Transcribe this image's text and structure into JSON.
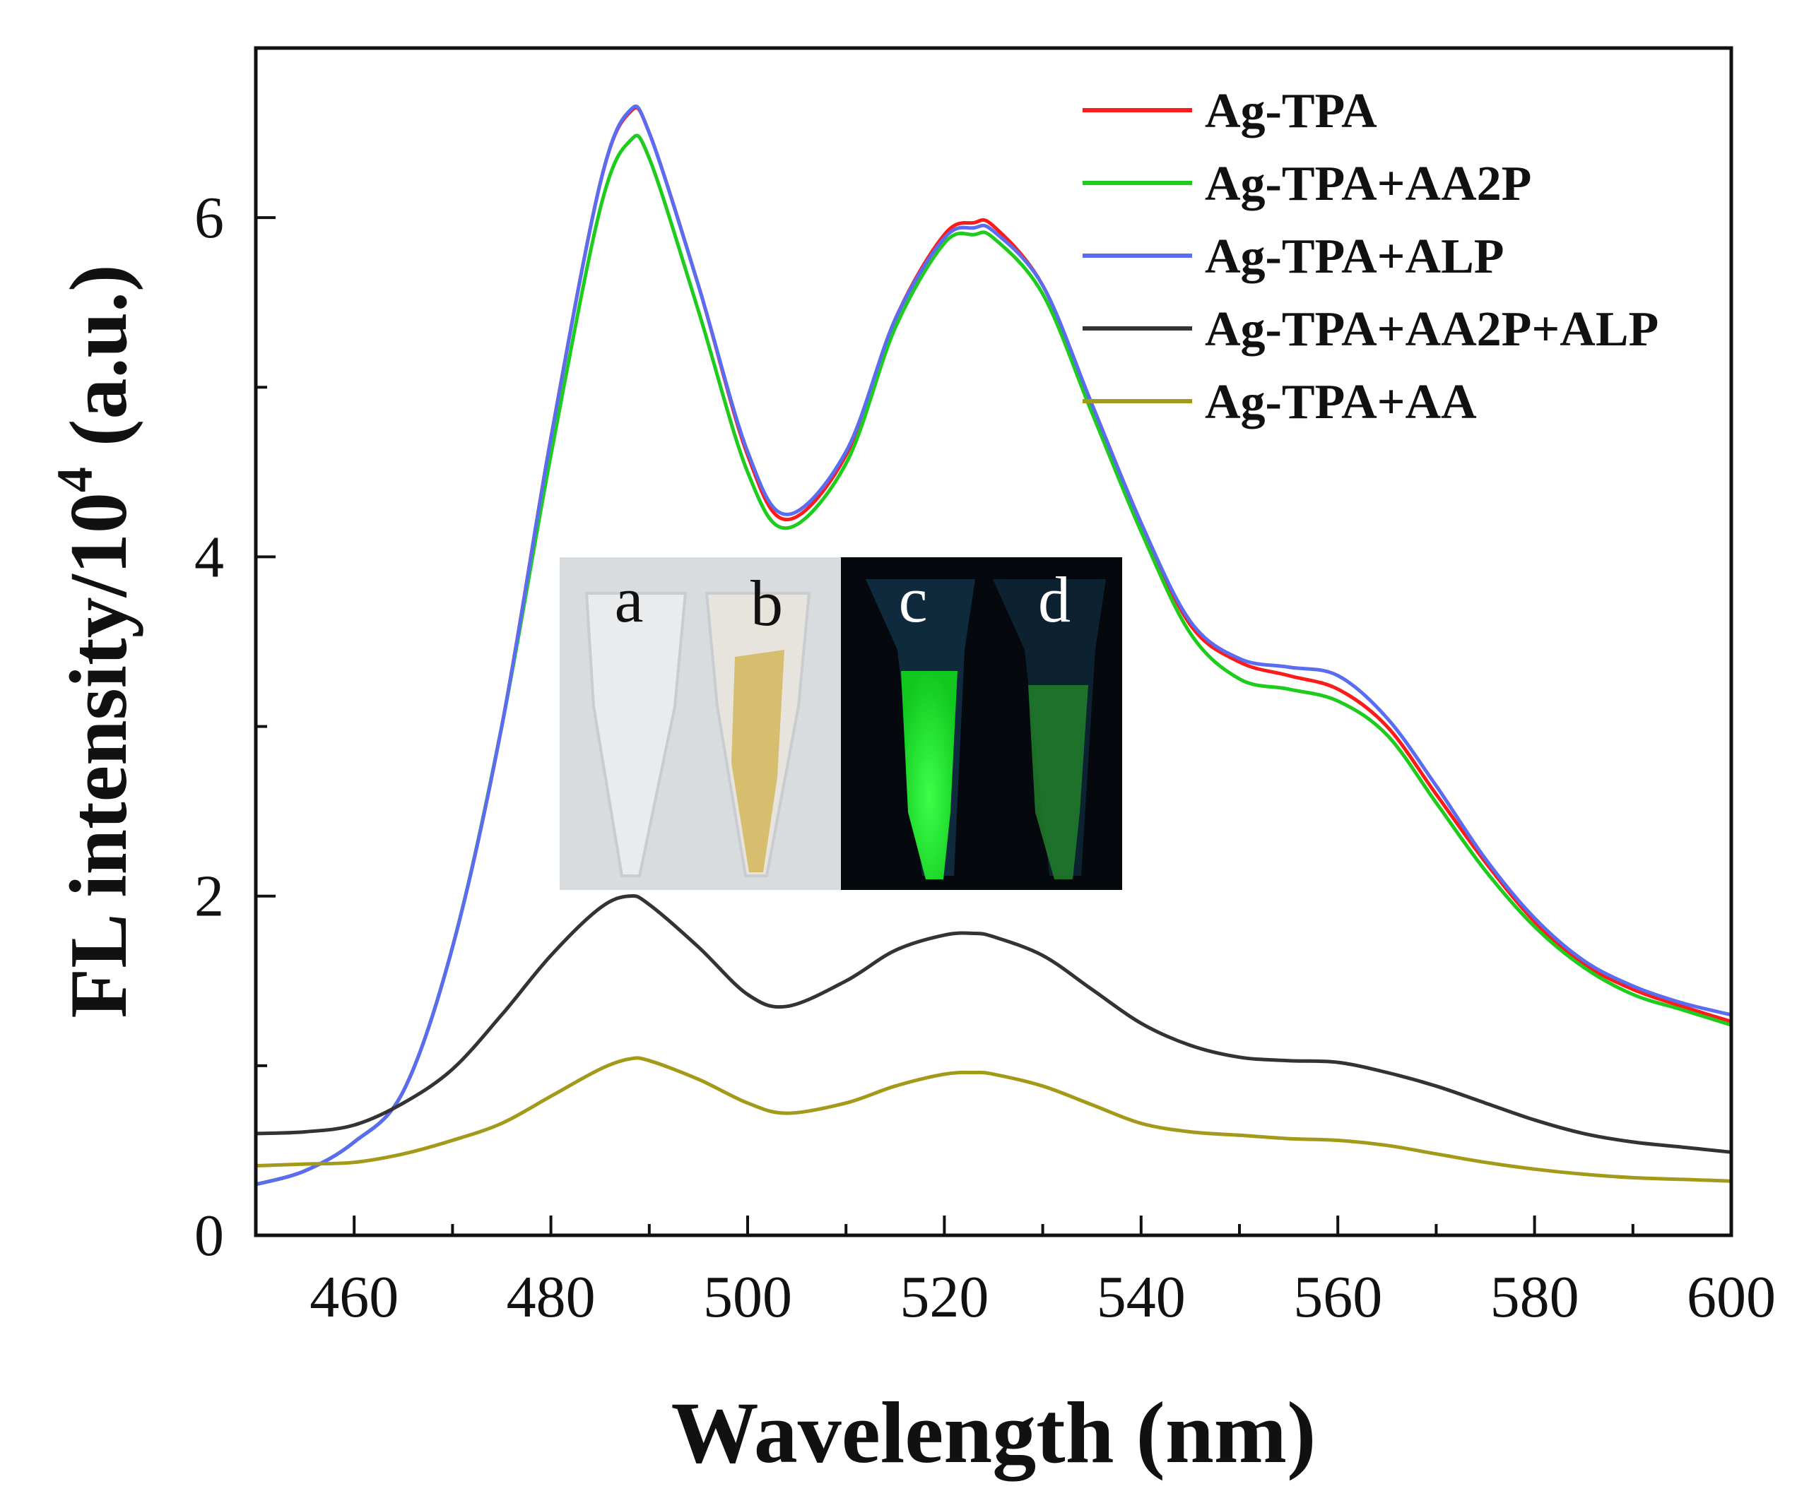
{
  "chart_data": {
    "type": "line",
    "title": "",
    "xlabel": "Wavelength (nm)",
    "ylabel": {
      "prefix": "FL intensity/10",
      "exponent": "4",
      "suffix": " (a.u.)"
    },
    "xlim": [
      450,
      600
    ],
    "ylim": [
      0,
      7
    ],
    "xticks": [
      460,
      480,
      500,
      520,
      540,
      560,
      580,
      600
    ],
    "yticks": [
      0,
      2,
      4,
      6
    ],
    "grid": false,
    "legend_position": "top-right",
    "x": [
      450,
      455,
      460,
      465,
      470,
      475,
      480,
      485,
      488,
      490,
      495,
      500,
      504,
      510,
      515,
      520,
      523,
      525,
      530,
      535,
      540,
      545,
      550,
      555,
      560,
      565,
      570,
      575,
      580,
      585,
      590,
      595,
      600
    ],
    "series": [
      {
        "name": "Ag-TPA",
        "color": "#ff1a1a",
        "values": [
          0.3,
          0.38,
          0.55,
          0.85,
          1.7,
          3.0,
          4.7,
          6.2,
          6.62,
          6.5,
          5.6,
          4.6,
          4.22,
          4.6,
          5.4,
          5.9,
          5.97,
          5.95,
          5.6,
          4.9,
          4.2,
          3.6,
          3.38,
          3.3,
          3.22,
          3.0,
          2.6,
          2.2,
          1.85,
          1.6,
          1.45,
          1.35,
          1.26
        ]
      },
      {
        "name": "Ag-TPA+AA2P",
        "color": "#1ecc1e",
        "values": [
          0.3,
          0.38,
          0.55,
          0.85,
          1.7,
          3.0,
          4.6,
          6.05,
          6.45,
          6.35,
          5.45,
          4.5,
          4.17,
          4.55,
          5.35,
          5.85,
          5.9,
          5.88,
          5.55,
          4.85,
          4.15,
          3.55,
          3.28,
          3.22,
          3.15,
          2.95,
          2.55,
          2.15,
          1.82,
          1.58,
          1.42,
          1.33,
          1.24
        ]
      },
      {
        "name": "Ag-TPA+ALP",
        "color": "#5a6cf0",
        "values": [
          0.3,
          0.38,
          0.55,
          0.85,
          1.7,
          3.0,
          4.7,
          6.2,
          6.63,
          6.5,
          5.6,
          4.62,
          4.25,
          4.62,
          5.4,
          5.88,
          5.94,
          5.92,
          5.6,
          4.9,
          4.2,
          3.62,
          3.4,
          3.35,
          3.3,
          3.05,
          2.65,
          2.22,
          1.87,
          1.62,
          1.47,
          1.37,
          1.3
        ]
      },
      {
        "name": "Ag-TPA+AA2P+ALP",
        "color": "#333333",
        "values": [
          0.6,
          0.61,
          0.65,
          0.78,
          0.98,
          1.3,
          1.65,
          1.93,
          2.0,
          1.95,
          1.7,
          1.42,
          1.35,
          1.5,
          1.68,
          1.77,
          1.78,
          1.76,
          1.65,
          1.45,
          1.25,
          1.12,
          1.05,
          1.03,
          1.02,
          0.96,
          0.88,
          0.78,
          0.68,
          0.6,
          0.55,
          0.52,
          0.49
        ]
      },
      {
        "name": "Ag-TPA+AA",
        "color": "#a39a1a",
        "values": [
          0.41,
          0.42,
          0.43,
          0.48,
          0.56,
          0.66,
          0.82,
          0.98,
          1.04,
          1.03,
          0.92,
          0.78,
          0.72,
          0.78,
          0.88,
          0.95,
          0.96,
          0.95,
          0.88,
          0.77,
          0.66,
          0.61,
          0.59,
          0.57,
          0.56,
          0.53,
          0.48,
          0.43,
          0.39,
          0.36,
          0.34,
          0.33,
          0.32
        ]
      }
    ],
    "inset_labels": [
      "a",
      "b",
      "c",
      "d"
    ]
  }
}
